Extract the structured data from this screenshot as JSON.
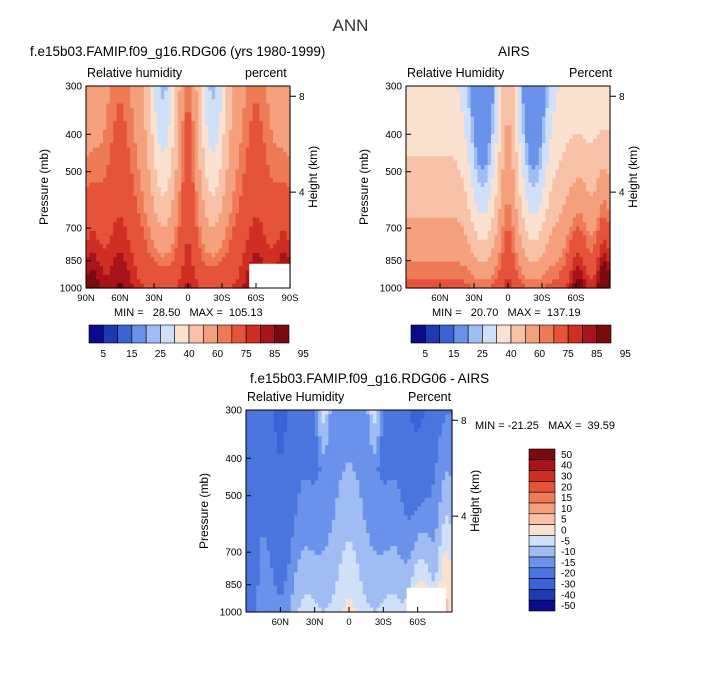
{
  "page_title": "ANN",
  "chart_data": [
    {
      "type": "heatmap",
      "title": "f.e15b03.FAMIP.f09_g16.RDG06 (yrs 1980-1999)",
      "field_label": "Relative humidity",
      "units_label": "percent",
      "ylabel": "Pressure (mb)",
      "ylabel_right": "Height (km)",
      "y_ticks": [
        "300",
        "400",
        "500",
        "700",
        "850",
        "1000"
      ],
      "y_right_ticks": [
        "8",
        "4"
      ],
      "x_ticks": [
        "90N",
        "60N",
        "30N",
        "0",
        "30S",
        "60S",
        "90S"
      ],
      "stats": "MIN =   28.50   MAX =  105.13",
      "colorbar_labels": [
        "5",
        "15",
        "25",
        "40",
        "60",
        "75",
        "85",
        "95"
      ],
      "colorbar_colors": [
        "#0a0a8a",
        "#1e3ab0",
        "#3a64d6",
        "#6a92ea",
        "#9fbdf3",
        "#cfe0f8",
        "#fbe2d0",
        "#f8c2a8",
        "#f4a07c",
        "#ee7a56",
        "#e4533a",
        "#cf2f22",
        "#a7141a",
        "#7a0a10"
      ]
    },
    {
      "type": "heatmap",
      "title": "AIRS",
      "field_label": "Relative Humidity",
      "units_label": "Percent",
      "ylabel": "Pressure (mb)",
      "ylabel_right": "Height (km)",
      "y_ticks": [
        "300",
        "400",
        "500",
        "700",
        "850",
        "1000"
      ],
      "y_right_ticks": [
        "8",
        "4"
      ],
      "x_ticks": [
        "60N",
        "30N",
        "0",
        "30S",
        "60S"
      ],
      "stats": "MIN =   20.70   MAX =  137.19",
      "colorbar_labels": [
        "5",
        "15",
        "25",
        "40",
        "60",
        "75",
        "85",
        "95"
      ],
      "colorbar_colors": [
        "#0a0a8a",
        "#1e3ab0",
        "#3a64d6",
        "#6a92ea",
        "#9fbdf3",
        "#cfe0f8",
        "#fbe2d0",
        "#f8c2a8",
        "#f4a07c",
        "#ee7a56",
        "#e4533a",
        "#cf2f22",
        "#a7141a",
        "#7a0a10"
      ]
    },
    {
      "type": "heatmap",
      "title": "f.e15b03.FAMIP.f09_g16.RDG06 - AIRS",
      "field_label": "Relative Humidity",
      "units_label": "Percent",
      "ylabel": "Pressure (mb)",
      "ylabel_right": "Height (km)",
      "y_ticks": [
        "300",
        "400",
        "500",
        "700",
        "850",
        "1000"
      ],
      "y_right_ticks": [
        "8",
        "4"
      ],
      "x_ticks": [
        "60N",
        "30N",
        "0",
        "30S",
        "60S"
      ],
      "stats": "MIN = -21.25   MAX =  39.59",
      "colorbar_labels": [
        "50",
        "40",
        "30",
        "20",
        "15",
        "10",
        "5",
        "0",
        "-5",
        "-10",
        "-15",
        "-20",
        "-30",
        "-40",
        "-50"
      ],
      "colorbar_colors": [
        "#7a0a10",
        "#a7141a",
        "#cf2f22",
        "#e4533a",
        "#ee7a56",
        "#f4a07c",
        "#f8c2a8",
        "#fbe2d0",
        "#cfe0f8",
        "#9fbdf3",
        "#6a92ea",
        "#4a74de",
        "#3a64d6",
        "#1e3ab0",
        "#0a0a8a"
      ]
    }
  ]
}
